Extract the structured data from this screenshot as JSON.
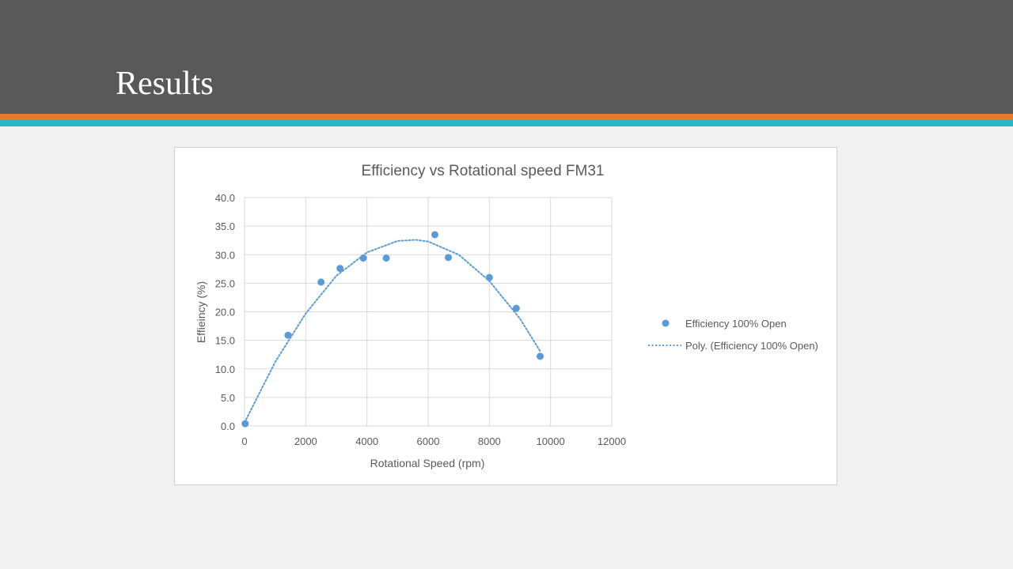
{
  "slide": {
    "title": "Results"
  },
  "colors": {
    "header": "#595959",
    "stripe_orange": "#e8792e",
    "stripe_teal": "#29b7c3",
    "series": "#5b9bd5"
  },
  "chart_data": {
    "type": "scatter",
    "title": "Efficiency vs Rotational speed FM31",
    "xlabel": "Rotational Speed (rpm)",
    "ylabel": "Effieincy (%)",
    "xlim": [
      0,
      12000
    ],
    "ylim": [
      0,
      40
    ],
    "xticks": [
      0,
      2000,
      4000,
      6000,
      8000,
      10000,
      12000
    ],
    "yticks": [
      0,
      5,
      10,
      15,
      20,
      25,
      30,
      35,
      40
    ],
    "xtick_labels": [
      "0",
      "2000",
      "4000",
      "6000",
      "8000",
      "10000",
      "12000"
    ],
    "ytick_labels": [
      "0.0",
      "5.0",
      "10.0",
      "15.0",
      "20.0",
      "25.0",
      "30.0",
      "35.0",
      "40.0"
    ],
    "grid": true,
    "legend_position": "right",
    "series": [
      {
        "name": "Efficiency 100% Open",
        "marker": "circle",
        "x": [
          20,
          1420,
          2500,
          3120,
          3880,
          4630,
          6220,
          6660,
          8000,
          8880,
          9660
        ],
        "y": [
          0.4,
          15.9,
          25.2,
          27.6,
          29.4,
          29.4,
          33.5,
          29.5,
          26.0,
          20.6,
          12.2
        ]
      }
    ],
    "trendline": {
      "name": "Poly. (Efficiency 100% Open)",
      "style": "dotted",
      "x": [
        0,
        1000,
        2000,
        3000,
        4000,
        5000,
        5600,
        6000,
        7000,
        8000,
        9000,
        9660
      ],
      "y": [
        0.6,
        11.2,
        19.7,
        26.3,
        30.4,
        32.4,
        32.6,
        32.3,
        30.0,
        25.4,
        18.8,
        13.1
      ]
    }
  }
}
